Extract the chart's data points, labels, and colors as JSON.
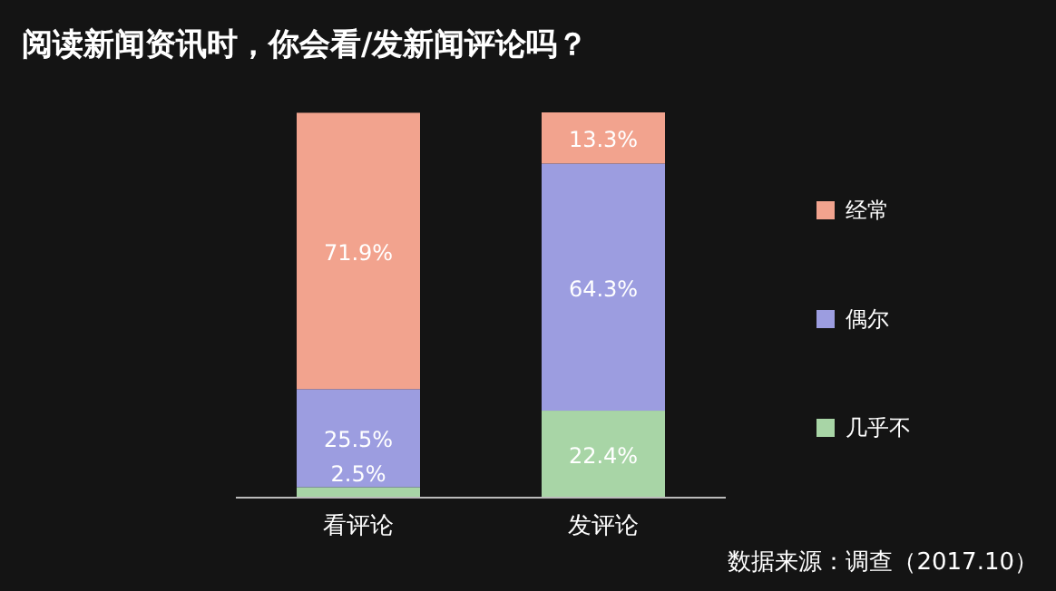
{
  "chart_data": {
    "type": "bar",
    "title": "阅读新闻资讯时，你会看/发新闻评论吗？",
    "stacked": true,
    "legend": "right",
    "categories": [
      "看评论",
      "发评论"
    ],
    "series": [
      {
        "name": "几乎不",
        "color": "#a8d5a6",
        "values": [
          2.5,
          22.4
        ],
        "value_labels": [
          "2.5%",
          "22.4%"
        ]
      },
      {
        "name": "偶尔",
        "color": "#9c9de0",
        "values": [
          25.5,
          64.3
        ],
        "value_labels": [
          "25.5%",
          "64.3%"
        ]
      },
      {
        "name": "经常",
        "color": "#f2a38e",
        "values": [
          71.9,
          13.3
        ],
        "value_labels": [
          "71.9%",
          "13.3%"
        ]
      }
    ],
    "annotations": [
      "数据来源：调查（2017.10）"
    ]
  }
}
